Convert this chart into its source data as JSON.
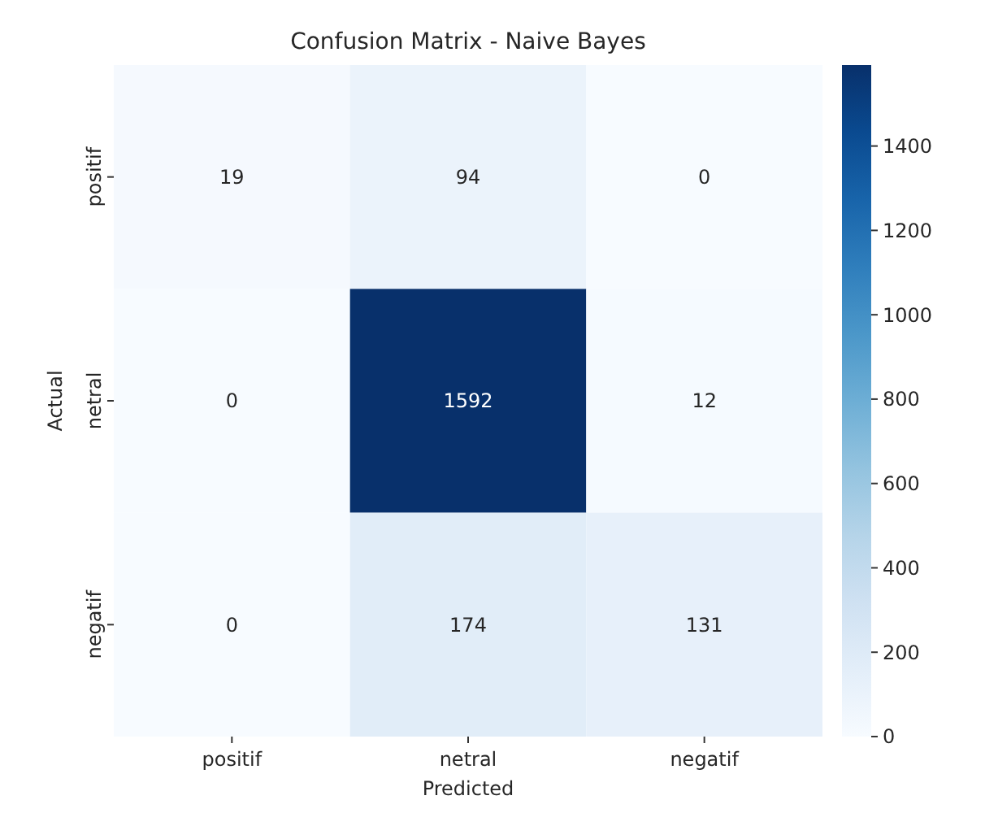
{
  "chart_data": {
    "type": "heatmap",
    "title": "Confusion Matrix - Naive Bayes",
    "xlabel": "Predicted",
    "ylabel": "Actual",
    "categories": [
      "positif",
      "netral",
      "negatif"
    ],
    "y_categories": [
      "positif",
      "netral",
      "negatif"
    ],
    "cells": [
      [
        19,
        94,
        0
      ],
      [
        0,
        1592,
        12
      ],
      [
        0,
        174,
        131
      ]
    ],
    "clim": [
      0,
      1592
    ],
    "cticks": [
      0,
      200,
      400,
      600,
      800,
      1000,
      1200,
      1400
    ],
    "data_labels": true
  }
}
